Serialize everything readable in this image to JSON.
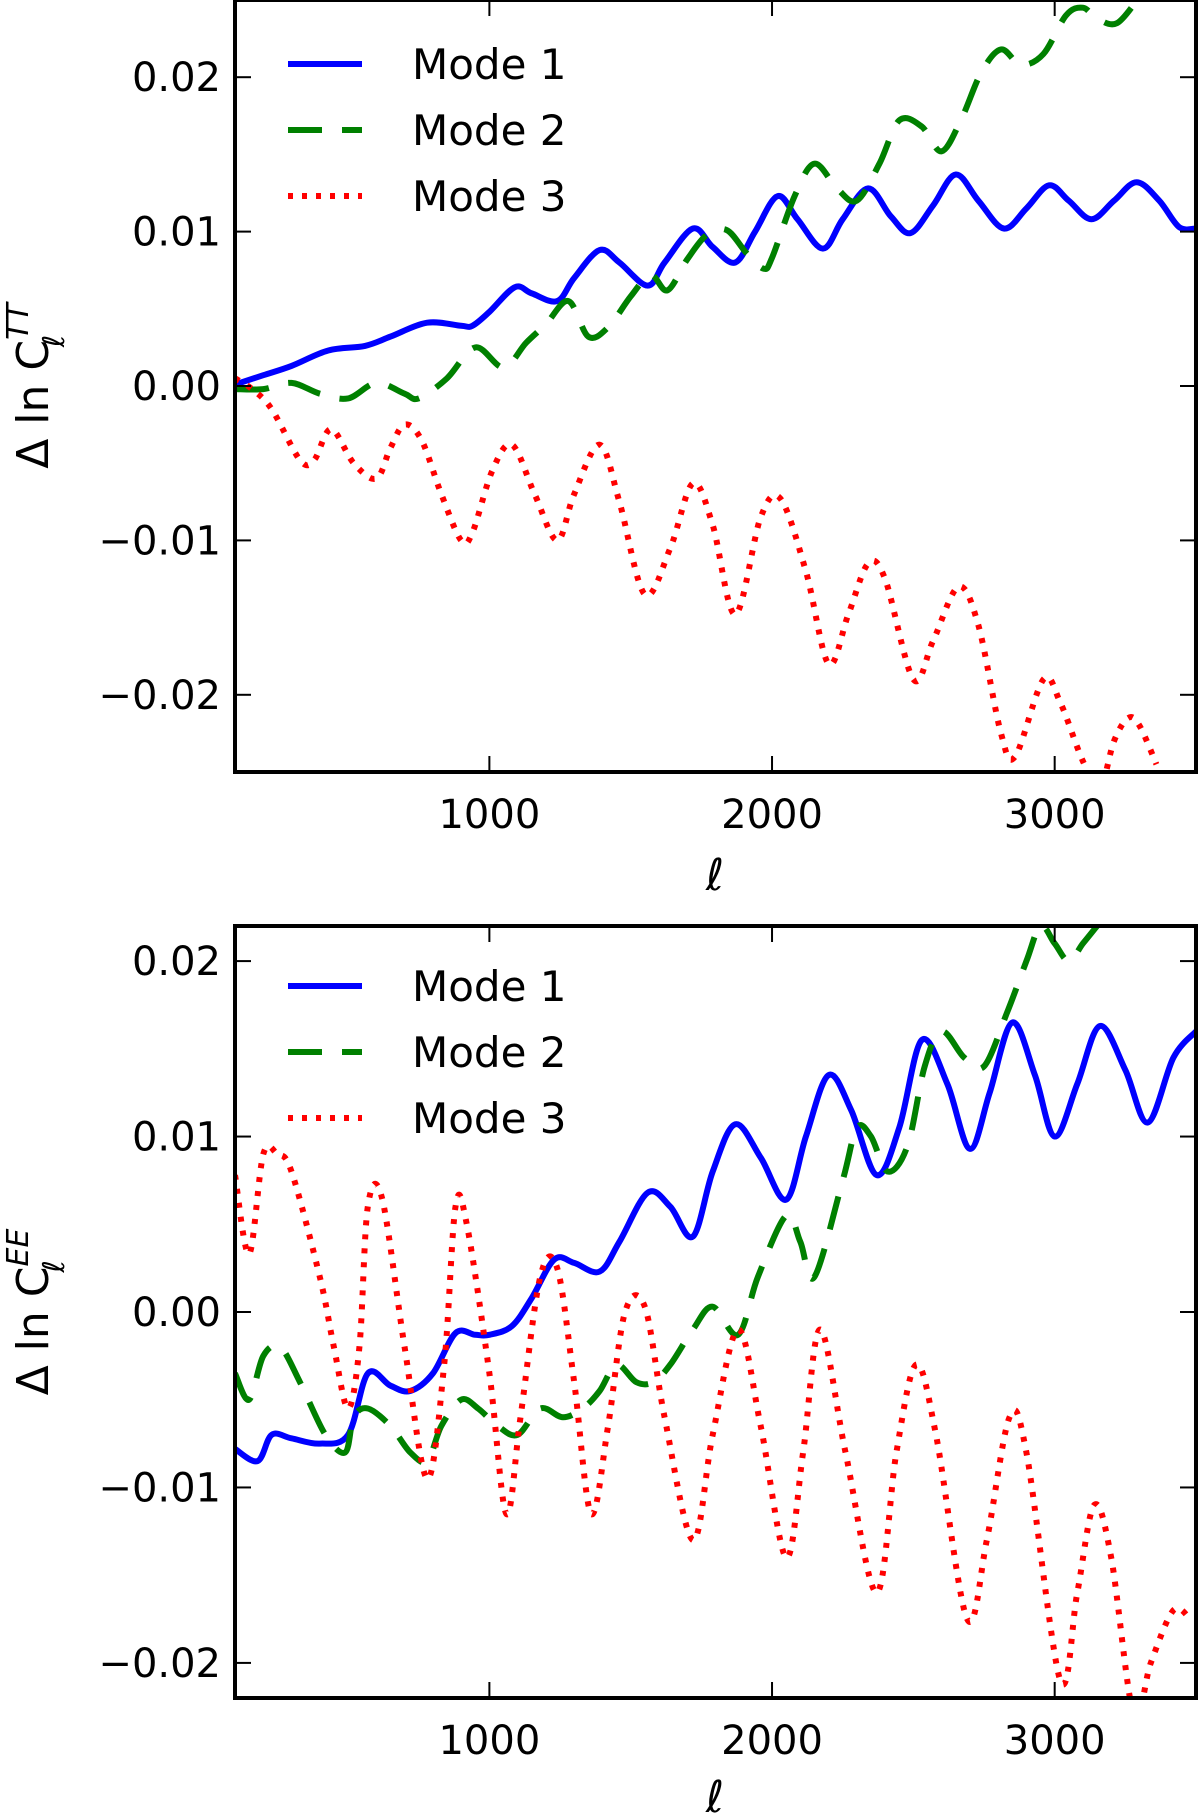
{
  "chart_data": [
    {
      "type": "line",
      "panel": "top",
      "title": "",
      "xlabel": "ℓ",
      "ylabel": {
        "prefix": "Δ ln C",
        "sup": "TT",
        "sub": "ℓ"
      },
      "xlim": [
        100,
        3500
      ],
      "ylim": [
        -0.025,
        0.025
      ],
      "xticks": [
        1000,
        2000,
        3000
      ],
      "xtick_labels": [
        "1000",
        "2000",
        "3000"
      ],
      "yticks": [
        -0.02,
        -0.01,
        0.0,
        0.01,
        0.02
      ],
      "ytick_labels": [
        "−0.02",
        "−0.01",
        "0.00",
        "0.01",
        "0.02"
      ],
      "grid": false,
      "legend_position": "top-left",
      "series": [
        {
          "name": "Mode 1",
          "color": "#0000ff",
          "style": "solid",
          "x": [
            100,
            200,
            300,
            430,
            560,
            650,
            780,
            900,
            940,
            1000,
            1090,
            1150,
            1240,
            1300,
            1390,
            1460,
            1560,
            1620,
            1720,
            1790,
            1870,
            1940,
            2020,
            2090,
            2180,
            2250,
            2340,
            2420,
            2490,
            2570,
            2650,
            2730,
            2820,
            2900,
            2980,
            3050,
            3130,
            3210,
            3290,
            3370,
            3440,
            3500
          ],
          "y": [
            0.0001,
            0.0007,
            0.0013,
            0.0023,
            0.0026,
            0.0032,
            0.0041,
            0.0039,
            0.0039,
            0.0048,
            0.0064,
            0.006,
            0.0055,
            0.007,
            0.0088,
            0.008,
            0.0065,
            0.008,
            0.0102,
            0.009,
            0.008,
            0.01,
            0.0123,
            0.0108,
            0.0089,
            0.0108,
            0.0128,
            0.011,
            0.0099,
            0.0117,
            0.0137,
            0.012,
            0.0102,
            0.0115,
            0.013,
            0.012,
            0.0108,
            0.012,
            0.0132,
            0.012,
            0.0103,
            0.0102
          ]
        },
        {
          "name": "Mode 2",
          "color": "#008000",
          "style": "dashed",
          "x": [
            100,
            200,
            300,
            400,
            500,
            600,
            700,
            750,
            850,
            950,
            1050,
            1130,
            1200,
            1280,
            1350,
            1420,
            1500,
            1570,
            1630,
            1700,
            1770,
            1840,
            1910,
            1970,
            2000,
            2080,
            2150,
            2230,
            2300,
            2380,
            2450,
            2530,
            2600,
            2670,
            2740,
            2810,
            2880,
            2960,
            3040,
            3100,
            3150,
            3220,
            3300
          ],
          "y": [
            -0.0002,
            -0.0002,
            0.0002,
            -0.0005,
            -0.0008,
            0.0002,
            -0.0005,
            -0.0008,
            0.0005,
            0.0025,
            0.0012,
            0.0028,
            0.004,
            0.0055,
            0.0032,
            0.0038,
            0.0058,
            0.0072,
            0.0062,
            0.0082,
            0.0098,
            0.0101,
            0.0086,
            0.0076,
            0.0083,
            0.0123,
            0.0144,
            0.0128,
            0.012,
            0.0144,
            0.0172,
            0.0168,
            0.0152,
            0.0173,
            0.0203,
            0.0218,
            0.0208,
            0.0215,
            0.024,
            0.0245,
            0.0238,
            0.0235,
            0.0252
          ]
        },
        {
          "name": "Mode 3",
          "color": "#ff0000",
          "style": "dotted",
          "x": [
            100,
            160,
            230,
            330,
            380,
            440,
            520,
            600,
            650,
            700,
            760,
            830,
            900,
            940,
            1010,
            1080,
            1160,
            1240,
            1300,
            1390,
            1460,
            1550,
            1640,
            1720,
            1790,
            1870,
            1960,
            2030,
            2120,
            2200,
            2270,
            2340,
            2400,
            2500,
            2570,
            2660,
            2730,
            2810,
            2860,
            2960,
            3020,
            3100,
            3160,
            3210,
            3260,
            3300,
            3360
          ],
          "y": [
            0.0005,
            -0.0002,
            -0.0015,
            -0.0048,
            -0.0048,
            -0.0028,
            -0.005,
            -0.006,
            -0.004,
            -0.0025,
            -0.0035,
            -0.007,
            -0.01,
            -0.0095,
            -0.0055,
            -0.0038,
            -0.007,
            -0.01,
            -0.007,
            -0.0038,
            -0.0075,
            -0.0135,
            -0.0105,
            -0.0063,
            -0.009,
            -0.0148,
            -0.0085,
            -0.0073,
            -0.012,
            -0.018,
            -0.0148,
            -0.0115,
            -0.0125,
            -0.019,
            -0.0165,
            -0.013,
            -0.0155,
            -0.0225,
            -0.024,
            -0.019,
            -0.0205,
            -0.0243,
            -0.026,
            -0.023,
            -0.0215,
            -0.022,
            -0.0245
          ]
        }
      ]
    },
    {
      "type": "line",
      "panel": "bottom",
      "title": "",
      "xlabel": "ℓ",
      "ylabel": {
        "prefix": "Δ ln C",
        "sup": "EE",
        "sub": "ℓ"
      },
      "xlim": [
        100,
        3500
      ],
      "ylim": [
        -0.022,
        0.022
      ],
      "xticks": [
        1000,
        2000,
        3000
      ],
      "xtick_labels": [
        "1000",
        "2000",
        "3000"
      ],
      "yticks": [
        -0.02,
        -0.01,
        0.0,
        0.01,
        0.02
      ],
      "ytick_labels": [
        "−0.02",
        "−0.01",
        "0.00",
        "0.01",
        "0.02"
      ],
      "grid": false,
      "legend_position": "top-left",
      "series": [
        {
          "name": "Mode 1",
          "color": "#0000ff",
          "style": "solid",
          "x": [
            100,
            180,
            230,
            300,
            400,
            500,
            570,
            650,
            720,
            800,
            880,
            950,
            1000,
            1080,
            1150,
            1230,
            1300,
            1390,
            1460,
            1560,
            1640,
            1720,
            1790,
            1870,
            1960,
            2050,
            2120,
            2200,
            2280,
            2370,
            2450,
            2530,
            2620,
            2700,
            2770,
            2850,
            2930,
            3000,
            3080,
            3160,
            3250,
            3330,
            3420,
            3500
          ],
          "y": [
            -0.0078,
            -0.0085,
            -0.007,
            -0.0072,
            -0.0075,
            -0.007,
            -0.0035,
            -0.0042,
            -0.0045,
            -0.0035,
            -0.0012,
            -0.0013,
            -0.0013,
            -0.0008,
            0.0008,
            0.003,
            0.0028,
            0.0023,
            0.004,
            0.0068,
            0.006,
            0.0043,
            0.008,
            0.0107,
            0.0088,
            0.0064,
            0.01,
            0.0135,
            0.0115,
            0.0078,
            0.0105,
            0.0155,
            0.013,
            0.0093,
            0.0125,
            0.0165,
            0.0135,
            0.01,
            0.013,
            0.0163,
            0.0138,
            0.0108,
            0.0145,
            0.016
          ]
        },
        {
          "name": "Mode 2",
          "color": "#008000",
          "style": "dashed",
          "x": [
            100,
            150,
            200,
            260,
            330,
            420,
            490,
            520,
            570,
            650,
            720,
            780,
            830,
            900,
            960,
            1030,
            1100,
            1180,
            1260,
            1330,
            1390,
            1450,
            1520,
            1580,
            1640,
            1720,
            1790,
            1880,
            1950,
            2050,
            2100,
            2150,
            2250,
            2300,
            2350,
            2410,
            2480,
            2540,
            2600,
            2680,
            2750,
            2830,
            2900,
            2950,
            3000,
            3050,
            3100,
            3150
          ],
          "y": [
            -0.0035,
            -0.005,
            -0.0025,
            -0.002,
            -0.004,
            -0.007,
            -0.008,
            -0.006,
            -0.0055,
            -0.0065,
            -0.008,
            -0.0085,
            -0.0065,
            -0.005,
            -0.0055,
            -0.0065,
            -0.007,
            -0.0055,
            -0.006,
            -0.0055,
            -0.0045,
            -0.003,
            -0.004,
            -0.004,
            -0.003,
            -0.001,
            0.0003,
            -0.0013,
            0.002,
            0.0055,
            0.004,
            0.002,
            0.0075,
            0.0105,
            0.01,
            0.008,
            0.0095,
            0.014,
            0.016,
            0.0145,
            0.014,
            0.017,
            0.02,
            0.022,
            0.021,
            0.02,
            0.021,
            0.022
          ]
        },
        {
          "name": "Mode 3",
          "color": "#ff0000",
          "style": "dotted",
          "x": [
            100,
            150,
            200,
            250,
            300,
            400,
            450,
            500,
            540,
            570,
            620,
            700,
            780,
            840,
            880,
            920,
            1000,
            1060,
            1110,
            1180,
            1240,
            1300,
            1360,
            1420,
            1480,
            1550,
            1620,
            1720,
            1790,
            1880,
            1960,
            2050,
            2110,
            2170,
            2260,
            2370,
            2440,
            2510,
            2580,
            2690,
            2760,
            2840,
            2900,
            3020,
            3080,
            3140,
            3200,
            3280,
            3340,
            3420,
            3480
          ],
          "y": [
            0.0078,
            0.0033,
            0.009,
            0.009,
            0.008,
            0.002,
            -0.002,
            -0.0055,
            -0.002,
            0.006,
            0.0065,
            -0.002,
            -0.0095,
            -0.003,
            0.006,
            0.005,
            -0.0035,
            -0.0115,
            -0.006,
            0.002,
            0.0025,
            -0.004,
            -0.0115,
            -0.0065,
            0.0,
            0.0003,
            -0.006,
            -0.013,
            -0.007,
            -0.001,
            -0.0065,
            -0.014,
            -0.008,
            -0.001,
            -0.008,
            -0.016,
            -0.008,
            -0.003,
            -0.007,
            -0.0175,
            -0.013,
            -0.006,
            -0.008,
            -0.021,
            -0.016,
            -0.011,
            -0.014,
            -0.023,
            -0.02,
            -0.017,
            -0.0175
          ]
        }
      ]
    }
  ]
}
